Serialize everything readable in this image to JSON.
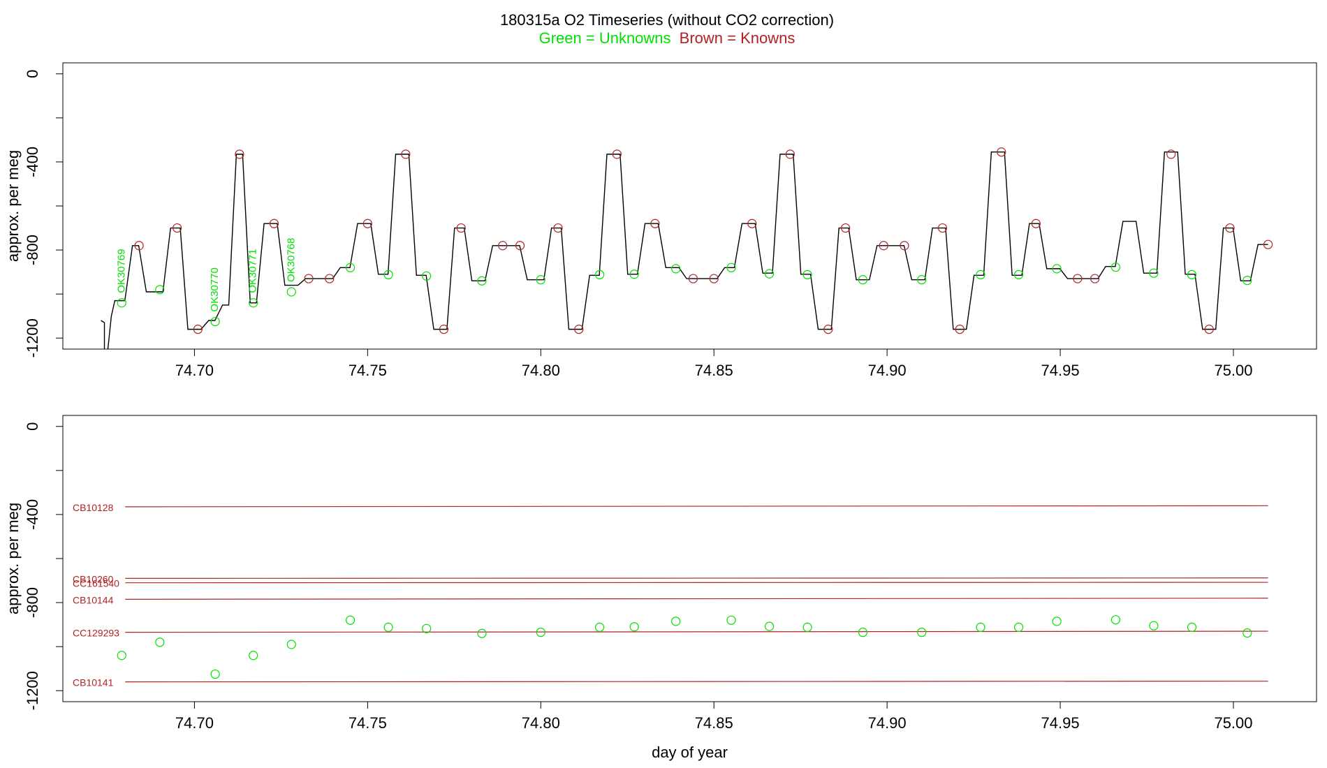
{
  "title": "180315a   O2 Timeseries (without CO2 correction)",
  "subtitle_green": "Green = Unknowns",
  "subtitle_brown": "Brown = Knowns",
  "colors": {
    "unknown": "#00e000",
    "known": "#b22222",
    "trace": "#000000"
  },
  "chart_data": [
    {
      "type": "line",
      "panel": "top",
      "xlabel": "",
      "ylabel": "approx. per meg",
      "xlim": [
        74.662,
        75.024
      ],
      "ylim": [
        -1250,
        50
      ],
      "x_ticks": [
        74.7,
        74.75,
        74.8,
        74.85,
        74.9,
        74.95,
        75.0
      ],
      "x_tick_labels": [
        "74.70",
        "74.75",
        "74.80",
        "74.85",
        "74.90",
        "74.95",
        "75.00"
      ],
      "y_ticks": [
        0,
        -400,
        -800,
        -1200
      ],
      "y_tick_labels": [
        "0",
        "-400",
        "-800",
        "-1200"
      ],
      "segments": [
        {
          "x0": 74.677,
          "x1": 74.681,
          "y": -1030
        },
        {
          "x0": 74.681,
          "x1": 74.685,
          "y": -780
        },
        {
          "x0": 74.685,
          "x1": 74.692,
          "y": -990
        },
        {
          "x0": 74.692,
          "x1": 74.697,
          "y": -700
        },
        {
          "x0": 74.697,
          "x1": 74.703,
          "y": -1160
        },
        {
          "x0": 74.703,
          "x1": 74.707,
          "y": -1120
        },
        {
          "x0": 74.707,
          "x1": 74.711,
          "y": -1050
        },
        {
          "x0": 74.711,
          "x1": 74.715,
          "y": -365
        },
        {
          "x0": 74.715,
          "x1": 74.719,
          "y": -1040
        },
        {
          "x0": 74.719,
          "x1": 74.725,
          "y": -680
        },
        {
          "x0": 74.725,
          "x1": 74.731,
          "y": -960
        },
        {
          "x0": 74.731,
          "x1": 74.741,
          "y": -930
        },
        {
          "x0": 74.741,
          "x1": 74.746,
          "y": -880
        },
        {
          "x0": 74.746,
          "x1": 74.752,
          "y": -680
        },
        {
          "x0": 74.752,
          "x1": 74.757,
          "y": -910
        },
        {
          "x0": 74.757,
          "x1": 74.763,
          "y": -365
        },
        {
          "x0": 74.763,
          "x1": 74.768,
          "y": -915
        },
        {
          "x0": 74.768,
          "x1": 74.774,
          "y": -1160
        },
        {
          "x0": 74.774,
          "x1": 74.779,
          "y": -700
        },
        {
          "x0": 74.779,
          "x1": 74.785,
          "y": -940
        },
        {
          "x0": 74.785,
          "x1": 74.795,
          "y": -780
        },
        {
          "x0": 74.795,
          "x1": 74.802,
          "y": -935
        },
        {
          "x0": 74.802,
          "x1": 74.807,
          "y": -700
        },
        {
          "x0": 74.807,
          "x1": 74.813,
          "y": -1160
        },
        {
          "x0": 74.813,
          "x1": 74.818,
          "y": -915
        },
        {
          "x0": 74.818,
          "x1": 74.824,
          "y": -365
        },
        {
          "x0": 74.824,
          "x1": 74.829,
          "y": -910
        },
        {
          "x0": 74.829,
          "x1": 74.835,
          "y": -680
        },
        {
          "x0": 74.835,
          "x1": 74.841,
          "y": -880
        },
        {
          "x0": 74.841,
          "x1": 74.852,
          "y": -930
        },
        {
          "x0": 74.852,
          "x1": 74.857,
          "y": -880
        },
        {
          "x0": 74.857,
          "x1": 74.863,
          "y": -680
        },
        {
          "x0": 74.863,
          "x1": 74.868,
          "y": -905
        },
        {
          "x0": 74.868,
          "x1": 74.874,
          "y": -365
        },
        {
          "x0": 74.874,
          "x1": 74.879,
          "y": -910
        },
        {
          "x0": 74.879,
          "x1": 74.885,
          "y": -1160
        },
        {
          "x0": 74.885,
          "x1": 74.89,
          "y": -700
        },
        {
          "x0": 74.89,
          "x1": 74.896,
          "y": -935
        },
        {
          "x0": 74.896,
          "x1": 74.906,
          "y": -780
        },
        {
          "x0": 74.906,
          "x1": 74.912,
          "y": -935
        },
        {
          "x0": 74.912,
          "x1": 74.918,
          "y": -700
        },
        {
          "x0": 74.918,
          "x1": 74.924,
          "y": -1160
        },
        {
          "x0": 74.924,
          "x1": 74.929,
          "y": -915
        },
        {
          "x0": 74.929,
          "x1": 74.935,
          "y": -355
        },
        {
          "x0": 74.935,
          "x1": 74.94,
          "y": -915
        },
        {
          "x0": 74.94,
          "x1": 74.945,
          "y": -680
        },
        {
          "x0": 74.945,
          "x1": 74.951,
          "y": -885
        },
        {
          "x0": 74.951,
          "x1": 74.962,
          "y": -930
        },
        {
          "x0": 74.962,
          "x1": 74.967,
          "y": -875
        },
        {
          "x0": 74.967,
          "x1": 74.973,
          "y": -670
        },
        {
          "x0": 74.973,
          "x1": 74.979,
          "y": -905
        },
        {
          "x0": 74.979,
          "x1": 74.985,
          "y": -355
        },
        {
          "x0": 74.985,
          "x1": 74.99,
          "y": -910
        },
        {
          "x0": 74.99,
          "x1": 74.996,
          "y": -1160
        },
        {
          "x0": 74.996,
          "x1": 75.001,
          "y": -700
        },
        {
          "x0": 75.001,
          "x1": 75.006,
          "y": -940
        },
        {
          "x0": 75.006,
          "x1": 75.01,
          "y": -775
        }
      ],
      "known_points": [
        {
          "x": 74.684,
          "y": -780
        },
        {
          "x": 74.695,
          "y": -700
        },
        {
          "x": 74.701,
          "y": -1160
        },
        {
          "x": 74.713,
          "y": -365
        },
        {
          "x": 74.723,
          "y": -680
        },
        {
          "x": 74.733,
          "y": -930
        },
        {
          "x": 74.739,
          "y": -930
        },
        {
          "x": 74.75,
          "y": -680
        },
        {
          "x": 74.761,
          "y": -365
        },
        {
          "x": 74.772,
          "y": -1160
        },
        {
          "x": 74.777,
          "y": -700
        },
        {
          "x": 74.789,
          "y": -780
        },
        {
          "x": 74.794,
          "y": -780
        },
        {
          "x": 74.805,
          "y": -700
        },
        {
          "x": 74.811,
          "y": -1160
        },
        {
          "x": 74.822,
          "y": -365
        },
        {
          "x": 74.833,
          "y": -680
        },
        {
          "x": 74.844,
          "y": -930
        },
        {
          "x": 74.85,
          "y": -930
        },
        {
          "x": 74.861,
          "y": -680
        },
        {
          "x": 74.872,
          "y": -365
        },
        {
          "x": 74.883,
          "y": -1160
        },
        {
          "x": 74.888,
          "y": -700
        },
        {
          "x": 74.899,
          "y": -780
        },
        {
          "x": 74.905,
          "y": -780
        },
        {
          "x": 74.916,
          "y": -700
        },
        {
          "x": 74.921,
          "y": -1160
        },
        {
          "x": 74.933,
          "y": -355
        },
        {
          "x": 74.943,
          "y": -680
        },
        {
          "x": 74.955,
          "y": -930
        },
        {
          "x": 74.96,
          "y": -930
        },
        {
          "x": 74.982,
          "y": -365
        },
        {
          "x": 74.993,
          "y": -1160
        },
        {
          "x": 74.999,
          "y": -700
        },
        {
          "x": 75.01,
          "y": -775
        }
      ],
      "unknown_points": [
        {
          "x": 74.679,
          "y": -1040
        },
        {
          "x": 74.69,
          "y": -980
        },
        {
          "x": 74.706,
          "y": -1125
        },
        {
          "x": 74.717,
          "y": -1040
        },
        {
          "x": 74.728,
          "y": -990
        },
        {
          "x": 74.745,
          "y": -880
        },
        {
          "x": 74.756,
          "y": -912
        },
        {
          "x": 74.767,
          "y": -918
        },
        {
          "x": 74.783,
          "y": -940
        },
        {
          "x": 74.8,
          "y": -935
        },
        {
          "x": 74.817,
          "y": -912
        },
        {
          "x": 74.827,
          "y": -910
        },
        {
          "x": 74.839,
          "y": -885
        },
        {
          "x": 74.855,
          "y": -880
        },
        {
          "x": 74.866,
          "y": -908
        },
        {
          "x": 74.877,
          "y": -912
        },
        {
          "x": 74.893,
          "y": -935
        },
        {
          "x": 74.91,
          "y": -935
        },
        {
          "x": 74.927,
          "y": -912
        },
        {
          "x": 74.938,
          "y": -912
        },
        {
          "x": 74.949,
          "y": -885
        },
        {
          "x": 74.966,
          "y": -878
        },
        {
          "x": 74.977,
          "y": -905
        },
        {
          "x": 74.988,
          "y": -912
        },
        {
          "x": 75.004,
          "y": -938
        }
      ],
      "annotations": [
        {
          "text": "OK30769",
          "x": 74.679
        },
        {
          "text": "OK30770",
          "x": 74.706
        },
        {
          "text": "OK30771",
          "x": 74.717
        },
        {
          "text": "OK30768",
          "x": 74.728
        }
      ]
    },
    {
      "type": "scatter",
      "panel": "bottom",
      "xlabel": "day of year",
      "ylabel": "approx. per meg",
      "xlim": [
        74.662,
        75.024
      ],
      "ylim": [
        -1250,
        50
      ],
      "x_ticks": [
        74.7,
        74.75,
        74.8,
        74.85,
        74.9,
        74.95,
        75.0
      ],
      "x_tick_labels": [
        "74.70",
        "74.75",
        "74.80",
        "74.85",
        "74.90",
        "74.95",
        "75.00"
      ],
      "y_ticks": [
        0,
        -400,
        -800,
        -1200
      ],
      "y_tick_labels": [
        "0",
        "-400",
        "-800",
        "-1200"
      ],
      "reference_lines": [
        {
          "name": "CB10128",
          "y0": -365,
          "y1": -360
        },
        {
          "name": "CB10260",
          "y0": -690,
          "y1": -688
        },
        {
          "name": "CC161540",
          "y0": -710,
          "y1": -708
        },
        {
          "name": "CB10144",
          "y0": -785,
          "y1": -780
        },
        {
          "name": "CC129293",
          "y0": -935,
          "y1": -930
        },
        {
          "name": "CB10141",
          "y0": -1160,
          "y1": -1157
        }
      ],
      "unknown_points": [
        {
          "x": 74.679,
          "y": -1040
        },
        {
          "x": 74.69,
          "y": -980
        },
        {
          "x": 74.706,
          "y": -1125
        },
        {
          "x": 74.717,
          "y": -1040
        },
        {
          "x": 74.728,
          "y": -990
        },
        {
          "x": 74.745,
          "y": -880
        },
        {
          "x": 74.756,
          "y": -912
        },
        {
          "x": 74.767,
          "y": -918
        },
        {
          "x": 74.783,
          "y": -940
        },
        {
          "x": 74.8,
          "y": -935
        },
        {
          "x": 74.817,
          "y": -912
        },
        {
          "x": 74.827,
          "y": -910
        },
        {
          "x": 74.839,
          "y": -885
        },
        {
          "x": 74.855,
          "y": -880
        },
        {
          "x": 74.866,
          "y": -908
        },
        {
          "x": 74.877,
          "y": -912
        },
        {
          "x": 74.893,
          "y": -935
        },
        {
          "x": 74.91,
          "y": -935
        },
        {
          "x": 74.927,
          "y": -912
        },
        {
          "x": 74.938,
          "y": -912
        },
        {
          "x": 74.949,
          "y": -885
        },
        {
          "x": 74.966,
          "y": -878
        },
        {
          "x": 74.977,
          "y": -905
        },
        {
          "x": 74.988,
          "y": -912
        },
        {
          "x": 75.004,
          "y": -938
        }
      ]
    }
  ]
}
